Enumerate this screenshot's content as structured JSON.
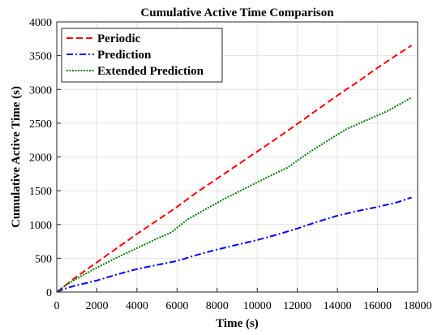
{
  "chart_data": {
    "type": "line",
    "title": "Cumulative Active Time Comparison",
    "xlabel": "Time (s)",
    "ylabel": "Cumulative Active Time (s)",
    "xlim": [
      0,
      18000
    ],
    "ylim": [
      0,
      4000
    ],
    "xticks": [
      0,
      2000,
      4000,
      6000,
      8000,
      10000,
      12000,
      14000,
      16000,
      18000
    ],
    "yticks": [
      0,
      500,
      1000,
      1500,
      2000,
      2500,
      3000,
      3500,
      4000
    ],
    "grid": true,
    "legend_position": "top-left",
    "series": [
      {
        "name": "Periodic",
        "color": "#ff0000",
        "style": "dashed",
        "x": [
          0,
          1000,
          2000,
          3000,
          4000,
          5000,
          6000,
          7000,
          8000,
          9000,
          10000,
          11000,
          12000,
          13000,
          14000,
          15000,
          16000,
          17000,
          17700
        ],
        "y": [
          0,
          230,
          440,
          650,
          860,
          1060,
          1260,
          1480,
          1680,
          1880,
          2080,
          2280,
          2490,
          2700,
          2910,
          3110,
          3320,
          3520,
          3650
        ]
      },
      {
        "name": "Prediction",
        "color": "#0000ff",
        "style": "dashdot",
        "x": [
          0,
          500,
          1000,
          2000,
          3000,
          4000,
          5000,
          6000,
          7000,
          8000,
          9000,
          10000,
          11000,
          12000,
          13000,
          14000,
          15000,
          16000,
          17000,
          17700
        ],
        "y": [
          0,
          60,
          100,
          170,
          260,
          340,
          400,
          460,
          550,
          630,
          700,
          770,
          850,
          940,
          1040,
          1130,
          1200,
          1260,
          1330,
          1400
        ]
      },
      {
        "name": "Extended Prediction",
        "color": "#008000",
        "style": "dotted",
        "x": [
          0,
          500,
          1000,
          2000,
          3000,
          4000,
          5000,
          5700,
          6500,
          7500,
          8500,
          9500,
          10500,
          11500,
          12500,
          13500,
          14500,
          15500,
          16500,
          17700
        ],
        "y": [
          0,
          110,
          200,
          360,
          510,
          650,
          790,
          880,
          1070,
          1240,
          1400,
          1550,
          1700,
          1840,
          2050,
          2240,
          2420,
          2550,
          2680,
          2880
        ]
      }
    ]
  }
}
